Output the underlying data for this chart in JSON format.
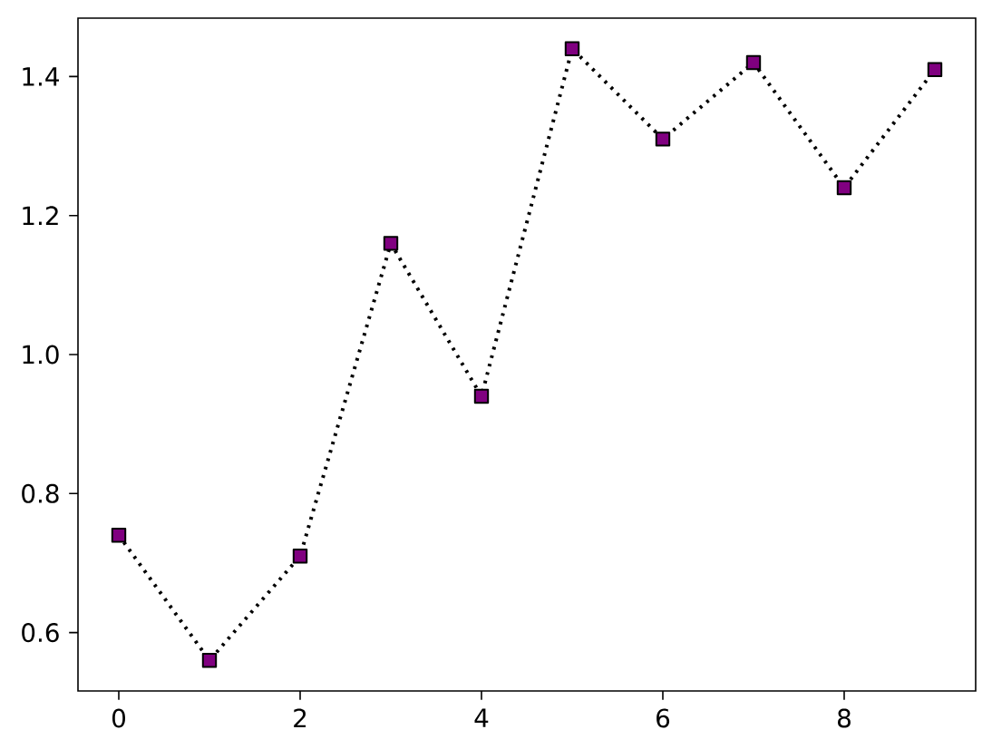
{
  "chart_data": {
    "type": "line",
    "x": [
      0,
      1,
      2,
      3,
      4,
      5,
      6,
      7,
      8,
      9
    ],
    "series": [
      {
        "color": "#800080",
        "values": [
          0.74,
          0.56,
          0.71,
          1.16,
          0.94,
          1.44,
          1.31,
          1.42,
          1.24,
          1.41
        ]
      }
    ],
    "xlim": [
      -0.45,
      9.45
    ],
    "ylim": [
      0.516,
      1.484
    ],
    "xticks": [
      0,
      2,
      4,
      6,
      8
    ],
    "yticks": [
      {
        "value": 0.6,
        "label": "0.6"
      },
      {
        "value": 0.8,
        "label": "0.8"
      },
      {
        "value": 1.0,
        "label": "1.0"
      },
      {
        "value": 1.2,
        "label": "1.2"
      },
      {
        "value": 1.4,
        "label": "1.4"
      }
    ],
    "marker": "square",
    "line_style": "dotted",
    "grid": false
  }
}
